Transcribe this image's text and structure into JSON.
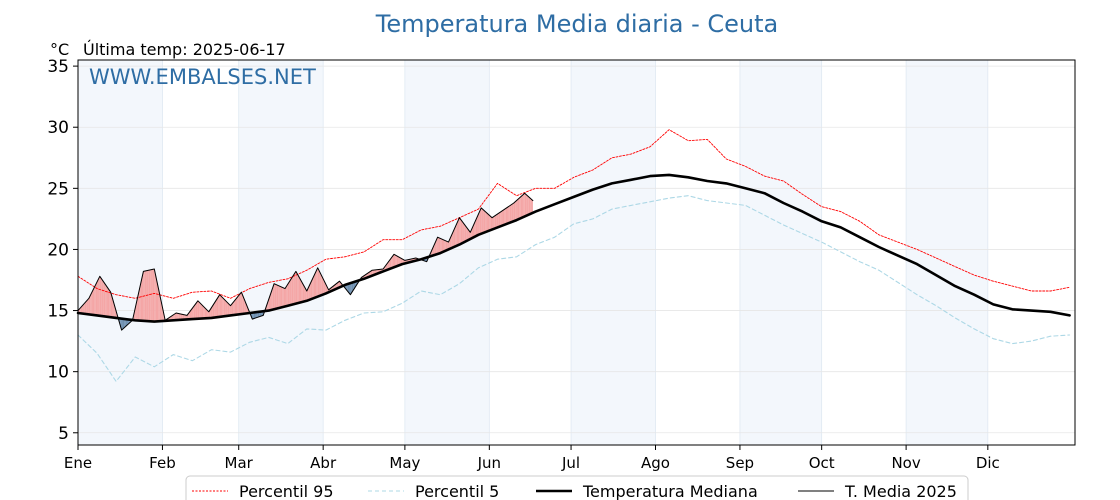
{
  "chart_data": {
    "type": "line",
    "title": "Temperatura Media diaria - Ceuta",
    "unit_label": "°C",
    "last_temp_label": "Última temp: 2025-06-17",
    "watermark": "WWW.EMBALSES.NET",
    "xlabel": "",
    "ylabel": "",
    "xlim": [
      1,
      366
    ],
    "ylim": [
      4,
      35.5
    ],
    "y_ticks": [
      5,
      10,
      15,
      20,
      25,
      30,
      35
    ],
    "months": [
      "Ene",
      "Feb",
      "Mar",
      "Abr",
      "May",
      "Jun",
      "Jul",
      "Ago",
      "Sep",
      "Oct",
      "Nov",
      "Dic"
    ],
    "month_start_days": [
      1,
      32,
      60,
      91,
      121,
      152,
      182,
      213,
      244,
      274,
      305,
      335
    ],
    "grid": true,
    "shaded_months": [
      "Ene",
      "Mar",
      "May",
      "Jul",
      "Sep",
      "Nov"
    ],
    "legend_position": "bottom-center",
    "fill_above_color": "#f4a6a6",
    "fill_below_color": "#6d8fb0",
    "series": [
      {
        "name": "Percentil 95",
        "color": "#ff0000",
        "style": "dotted",
        "x": [
          1,
          8,
          15,
          22,
          29,
          36,
          43,
          50,
          57,
          64,
          71,
          78,
          85,
          92,
          99,
          106,
          113,
          120,
          127,
          134,
          141,
          148,
          155,
          162,
          169,
          176,
          183,
          190,
          197,
          204,
          211,
          218,
          225,
          232,
          239,
          246,
          253,
          260,
          267,
          274,
          281,
          288,
          295,
          302,
          309,
          316,
          323,
          330,
          337,
          344,
          351,
          358,
          365
        ],
        "values": [
          17.8,
          16.8,
          16.3,
          16.0,
          16.4,
          16.0,
          16.5,
          16.6,
          16.0,
          16.8,
          17.3,
          17.6,
          18.3,
          19.2,
          19.4,
          19.8,
          20.8,
          20.8,
          21.6,
          21.9,
          22.6,
          23.3,
          25.4,
          24.4,
          25.0,
          25.0,
          25.9,
          26.5,
          27.5,
          27.8,
          28.4,
          29.8,
          28.9,
          29.0,
          27.4,
          26.8,
          26.0,
          25.6,
          24.5,
          23.5,
          23.1,
          22.3,
          21.2,
          20.6,
          20.0,
          19.3,
          18.6,
          17.9,
          17.4,
          17.0,
          16.6,
          16.6,
          16.9
        ]
      },
      {
        "name": "Percentil 5",
        "color": "#add8e6",
        "style": "dashed",
        "x": [
          1,
          8,
          15,
          22,
          29,
          36,
          43,
          50,
          57,
          64,
          71,
          78,
          85,
          92,
          99,
          106,
          113,
          120,
          127,
          134,
          141,
          148,
          155,
          162,
          169,
          176,
          183,
          190,
          197,
          204,
          211,
          218,
          225,
          232,
          239,
          246,
          253,
          260,
          267,
          274,
          281,
          288,
          295,
          302,
          309,
          316,
          323,
          330,
          337,
          344,
          351,
          358,
          365
        ],
        "values": [
          13.0,
          11.5,
          9.2,
          11.2,
          10.4,
          11.4,
          10.9,
          11.8,
          11.6,
          12.4,
          12.8,
          12.3,
          13.5,
          13.4,
          14.2,
          14.8,
          14.9,
          15.6,
          16.6,
          16.3,
          17.2,
          18.5,
          19.2,
          19.4,
          20.4,
          21.0,
          22.1,
          22.5,
          23.3,
          23.6,
          23.9,
          24.2,
          24.4,
          24.0,
          23.8,
          23.6,
          22.8,
          22.0,
          21.3,
          20.6,
          19.8,
          19.0,
          18.3,
          17.3,
          16.3,
          15.4,
          14.4,
          13.5,
          12.7,
          12.3,
          12.5,
          12.9,
          13.0
        ]
      },
      {
        "name": "Temperatura Mediana",
        "color": "#000000",
        "style": "bold",
        "x": [
          1,
          8,
          15,
          22,
          29,
          36,
          43,
          50,
          57,
          64,
          71,
          78,
          85,
          92,
          99,
          106,
          113,
          120,
          127,
          134,
          141,
          148,
          155,
          162,
          169,
          176,
          183,
          190,
          197,
          204,
          211,
          218,
          225,
          232,
          239,
          246,
          253,
          260,
          267,
          274,
          281,
          288,
          295,
          302,
          309,
          316,
          323,
          330,
          337,
          344,
          351,
          358,
          365
        ],
        "values": [
          14.8,
          14.6,
          14.4,
          14.2,
          14.1,
          14.2,
          14.3,
          14.4,
          14.6,
          14.8,
          15.0,
          15.4,
          15.8,
          16.4,
          17.1,
          17.6,
          18.2,
          18.8,
          19.2,
          19.7,
          20.4,
          21.2,
          21.8,
          22.4,
          23.1,
          23.7,
          24.3,
          24.9,
          25.4,
          25.7,
          26.0,
          26.1,
          25.9,
          25.6,
          25.4,
          25.0,
          24.6,
          23.8,
          23.1,
          22.3,
          21.8,
          21.0,
          20.2,
          19.5,
          18.8,
          17.9,
          17.0,
          16.3,
          15.5,
          15.1,
          15.0,
          14.9,
          14.6
        ]
      },
      {
        "name": "T. Media 2025",
        "color": "#000000",
        "style": "thin",
        "x": [
          1,
          5,
          9,
          13,
          17,
          21,
          25,
          29,
          33,
          37,
          41,
          45,
          49,
          53,
          57,
          61,
          65,
          69,
          73,
          77,
          81,
          85,
          89,
          93,
          97,
          101,
          105,
          109,
          113,
          117,
          121,
          125,
          129,
          133,
          137,
          141,
          145,
          149,
          153,
          157,
          161,
          165,
          168
        ],
        "values": [
          15.0,
          16.0,
          17.8,
          16.5,
          13.4,
          14.2,
          18.2,
          18.4,
          14.2,
          14.8,
          14.6,
          15.8,
          14.9,
          16.3,
          15.4,
          16.5,
          14.3,
          14.6,
          17.2,
          16.8,
          18.2,
          16.6,
          18.5,
          16.7,
          17.4,
          16.3,
          17.7,
          18.3,
          18.4,
          19.6,
          19.1,
          19.3,
          19.0,
          21.0,
          20.6,
          22.6,
          21.4,
          23.4,
          22.6,
          23.2,
          23.8,
          24.6,
          24.0
        ]
      }
    ]
  }
}
